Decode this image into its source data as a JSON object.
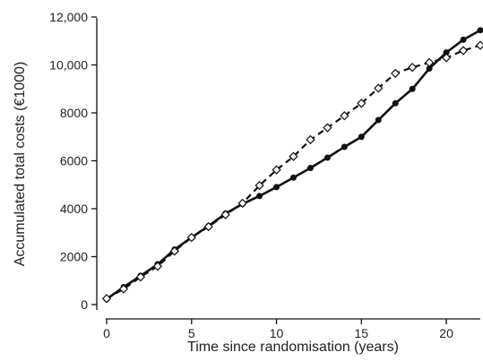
{
  "chart_data": {
    "type": "line",
    "title": "",
    "xlabel": "Time since randomisation (years)",
    "ylabel": "Accumulated total costs (€1000)",
    "xlim": [
      0,
      22
    ],
    "ylim": [
      0,
      12000
    ],
    "xticks": [
      0,
      5,
      10,
      15,
      20
    ],
    "xtick_labels": [
      "0",
      "5",
      "10",
      "15",
      "20"
    ],
    "yticks": [
      0,
      2000,
      4000,
      6000,
      8000,
      10000,
      12000
    ],
    "ytick_labels": [
      "0",
      "2000",
      "4000",
      "6000",
      "8000",
      "10,000",
      "12,000"
    ],
    "grid": false,
    "legend": "none",
    "x": [
      0,
      1,
      2,
      3,
      4,
      5,
      6,
      7,
      8,
      9,
      10,
      11,
      12,
      13,
      14,
      15,
      16,
      17,
      18,
      19,
      20,
      21,
      22
    ],
    "series": [
      {
        "style": "solid",
        "marker": "filled-circle",
        "color": "#111111",
        "values": [
          230,
          730,
          1200,
          1680,
          2300,
          2800,
          3280,
          3800,
          4200,
          4530,
          4900,
          5300,
          5700,
          6130,
          6580,
          7000,
          7700,
          8400,
          9000,
          9850,
          10520,
          11050,
          11450
        ]
      },
      {
        "style": "dashed",
        "marker": "open-diamond",
        "color": "#111111",
        "values": [
          250,
          650,
          1150,
          1600,
          2230,
          2800,
          3250,
          3750,
          4230,
          4970,
          5620,
          6180,
          6880,
          7380,
          7880,
          8400,
          9030,
          9650,
          9900,
          10100,
          10300,
          10600,
          10820
        ]
      }
    ]
  }
}
